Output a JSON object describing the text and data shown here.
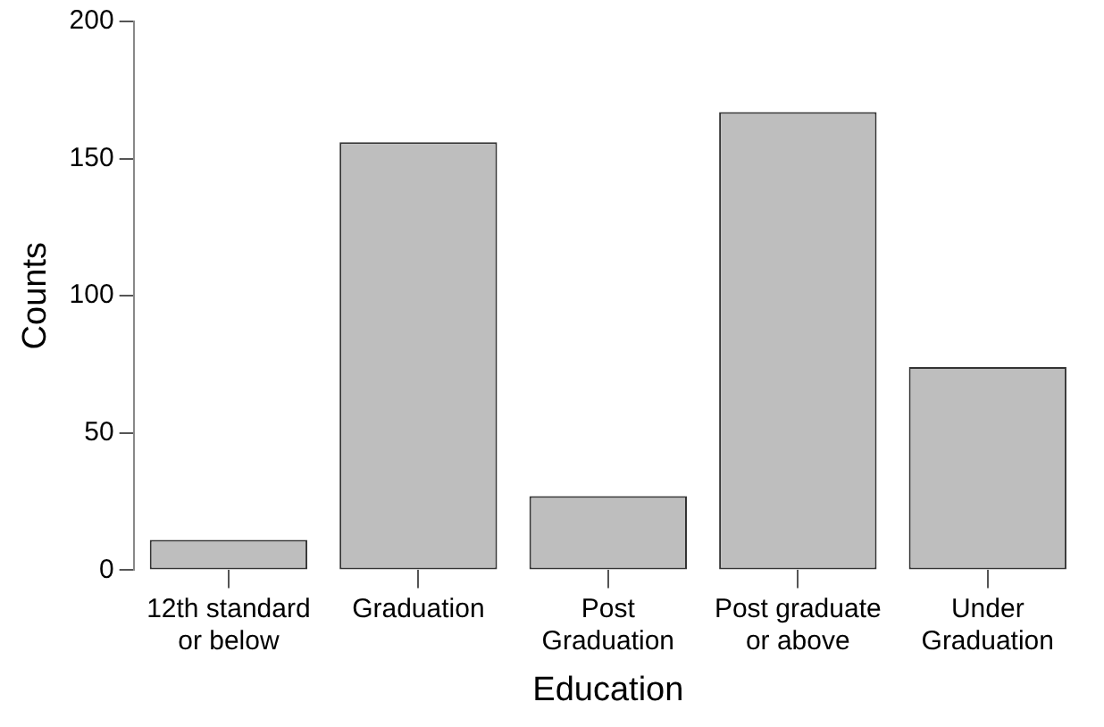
{
  "chart_data": {
    "type": "bar",
    "xlabel": "Education",
    "ylabel": "Counts",
    "categories": [
      "12th standard or below",
      "Graduation",
      "Post Graduation",
      "Post graduate or above",
      "Under Graduation"
    ],
    "values": [
      11,
      156,
      27,
      167,
      74
    ],
    "color": "#bebebe",
    "ylim": [
      0,
      200
    ],
    "yticks": [
      0,
      50,
      100,
      150,
      200
    ],
    "grid": false,
    "legend": false
  }
}
